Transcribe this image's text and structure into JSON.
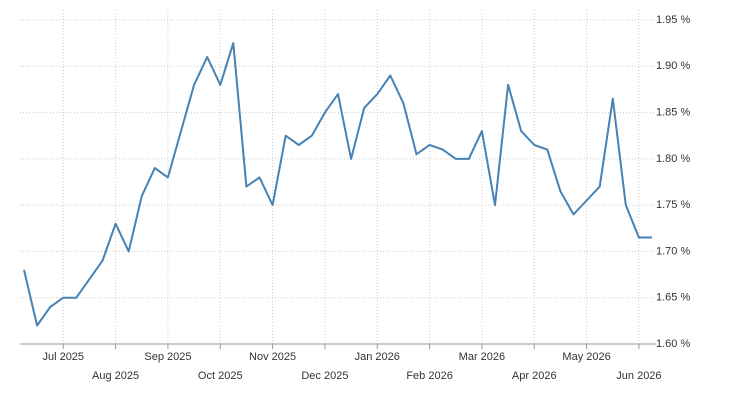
{
  "chart_data": {
    "type": "line",
    "categories": [
      null,
      null,
      null,
      "Jul 2025",
      null,
      null,
      null,
      "Aug 2025",
      null,
      null,
      null,
      "Sep 2025",
      null,
      null,
      null,
      "Oct 2025",
      null,
      null,
      null,
      "Nov 2025",
      null,
      null,
      null,
      "Dec 2025",
      null,
      null,
      null,
      "Jan 2026",
      null,
      null,
      null,
      "Feb 2026",
      null,
      null,
      null,
      "Mar 2026",
      null,
      null,
      null,
      "Apr 2026",
      null,
      null,
      null,
      "May 2026",
      null,
      null,
      null,
      "Jun 2026",
      null
    ],
    "values": [
      1.68,
      1.62,
      1.64,
      1.65,
      1.65,
      1.67,
      1.69,
      1.73,
      1.7,
      1.76,
      1.79,
      1.78,
      1.83,
      1.88,
      1.91,
      1.88,
      1.925,
      1.77,
      1.78,
      1.75,
      1.825,
      1.815,
      1.825,
      1.85,
      1.87,
      1.8,
      1.855,
      1.87,
      1.89,
      1.86,
      1.805,
      1.815,
      1.81,
      1.8,
      1.8,
      1.83,
      1.75,
      1.88,
      1.83,
      1.815,
      1.81,
      1.765,
      1.74,
      1.755,
      1.77,
      1.865,
      1.75,
      1.715,
      1.715
    ],
    "color": "#4682b4",
    "ylim": [
      1.6,
      1.95
    ],
    "yticks": [
      {
        "value": 1.6,
        "label": "1.60 %"
      },
      {
        "value": 1.65,
        "label": "1.65 %"
      },
      {
        "value": 1.7,
        "label": "1.70 %"
      },
      {
        "value": 1.75,
        "label": "1.75 %"
      },
      {
        "value": 1.8,
        "label": "1.80 %"
      },
      {
        "value": 1.85,
        "label": "1.85 %"
      },
      {
        "value": 1.9,
        "label": "1.90 %"
      },
      {
        "value": 1.95,
        "label": "1.95 %"
      }
    ],
    "grid": true
  }
}
